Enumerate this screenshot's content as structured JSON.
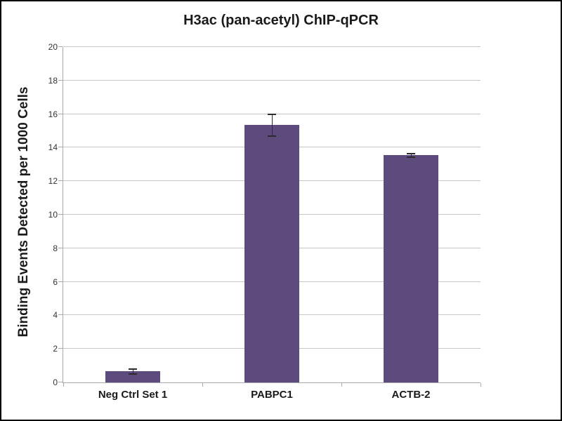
{
  "title": "H3ac (pan-acetyl) ChIP-qPCR",
  "chart_data": {
    "type": "bar",
    "title": "H3ac (pan-acetyl) ChIP-qPCR",
    "categories": [
      "Neg Ctrl Set 1",
      "PABPC1",
      "ACTB-2"
    ],
    "values": [
      0.65,
      15.35,
      13.55
    ],
    "error_bars": [
      0.15,
      0.65,
      0.1
    ],
    "xlabel": "",
    "ylabel": "Binding Events Detected per 1000 Cells",
    "ylim": [
      0,
      20
    ],
    "yticks": [
      0,
      2,
      4,
      6,
      8,
      10,
      12,
      14,
      16,
      18,
      20
    ],
    "grid": true,
    "legend": false,
    "colors": {
      "bar_fill": "#5E4B7E",
      "gridline": "#C6C6C6",
      "axis": "#A9A9A9",
      "error_bar": "#2B2B2B",
      "text": "#1A1A1A",
      "tick_label": "#333333",
      "background": "#FFFFFF",
      "frame_border": "#000000"
    }
  }
}
